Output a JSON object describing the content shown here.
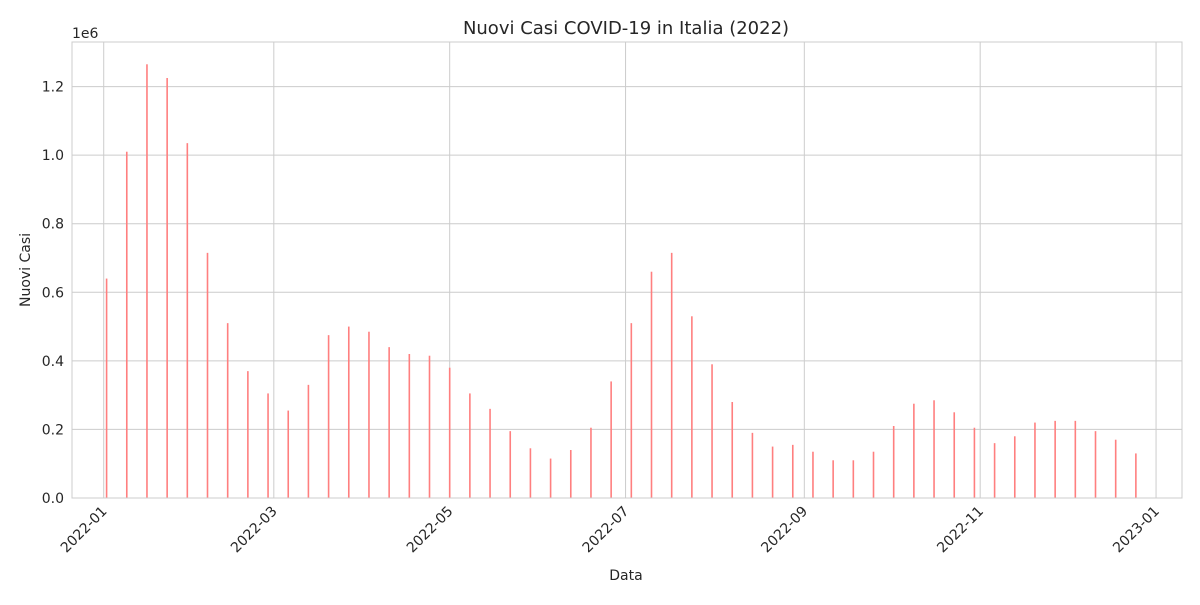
{
  "chart_data": {
    "type": "bar",
    "title": "Nuovi Casi COVID-19 in Italia (2022)",
    "xlabel": "Data",
    "ylabel": "Nuovi Casi",
    "y_offset_label": "1e6",
    "y_unit_scale": 1000000,
    "color": "#ff7f7f",
    "grid": true,
    "xlim": [
      "2021-12-21",
      "2023-01-10"
    ],
    "ylim": [
      0,
      1330000
    ],
    "x_ticks": [
      "2022-01-01",
      "2022-03-01",
      "2022-05-01",
      "2022-07-01",
      "2022-09-01",
      "2022-11-01",
      "2023-01-01"
    ],
    "x_tick_labels": [
      "2022-01",
      "2022-03",
      "2022-05",
      "2022-07",
      "2022-09",
      "2022-11",
      "2023-01"
    ],
    "y_ticks": [
      0,
      200000,
      400000,
      600000,
      800000,
      1000000,
      1200000
    ],
    "y_tick_labels": [
      "0.0",
      "0.2",
      "0.4",
      "0.6",
      "0.8",
      "1.0",
      "1.2"
    ],
    "x": [
      "2022-01-02",
      "2022-01-09",
      "2022-01-16",
      "2022-01-23",
      "2022-01-30",
      "2022-02-06",
      "2022-02-13",
      "2022-02-20",
      "2022-02-27",
      "2022-03-06",
      "2022-03-13",
      "2022-03-20",
      "2022-03-27",
      "2022-04-03",
      "2022-04-10",
      "2022-04-17",
      "2022-04-24",
      "2022-05-01",
      "2022-05-08",
      "2022-05-15",
      "2022-05-22",
      "2022-05-29",
      "2022-06-05",
      "2022-06-12",
      "2022-06-19",
      "2022-06-26",
      "2022-07-03",
      "2022-07-10",
      "2022-07-17",
      "2022-07-24",
      "2022-07-31",
      "2022-08-07",
      "2022-08-14",
      "2022-08-21",
      "2022-08-28",
      "2022-09-04",
      "2022-09-11",
      "2022-09-18",
      "2022-09-25",
      "2022-10-02",
      "2022-10-09",
      "2022-10-16",
      "2022-10-23",
      "2022-10-30",
      "2022-11-06",
      "2022-11-13",
      "2022-11-20",
      "2022-11-27",
      "2022-12-04",
      "2022-12-11",
      "2022-12-18",
      "2022-12-25"
    ],
    "values": [
      640000,
      1010000,
      1265000,
      1225000,
      1035000,
      715000,
      510000,
      370000,
      305000,
      255000,
      330000,
      475000,
      500000,
      485000,
      440000,
      420000,
      415000,
      380000,
      305000,
      260000,
      195000,
      145000,
      115000,
      140000,
      205000,
      340000,
      510000,
      660000,
      715000,
      530000,
      390000,
      280000,
      190000,
      150000,
      155000,
      135000,
      110000,
      110000,
      135000,
      210000,
      275000,
      285000,
      250000,
      205000,
      160000,
      180000,
      220000,
      225000,
      225000,
      195000,
      170000,
      130000
    ]
  }
}
